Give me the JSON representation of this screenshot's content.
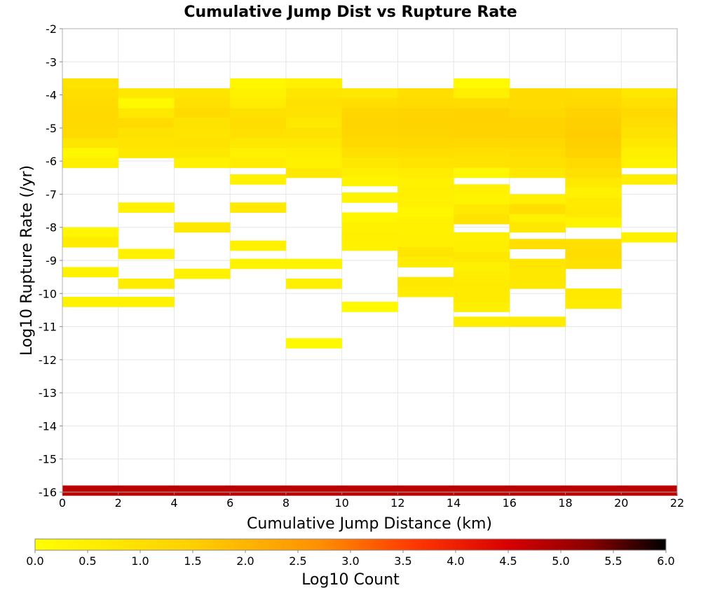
{
  "chart_data": {
    "type": "heatmap",
    "title": "Cumulative Jump Dist vs Rupture Rate",
    "xlabel": "Cumulative Jump Distance (km)",
    "ylabel": "Log10 Rupture Rate (/yr)",
    "xlim": [
      0,
      22
    ],
    "ylim": [
      -16,
      -2
    ],
    "x_bin_width": 2,
    "y_bin_width": 0.3,
    "x_ticks": [
      "0",
      "2",
      "4",
      "6",
      "8",
      "10",
      "12",
      "14",
      "16",
      "18",
      "20",
      "22"
    ],
    "y_ticks": [
      "-2",
      "-3",
      "-4",
      "-5",
      "-6",
      "-7",
      "-8",
      "-9",
      "-10",
      "-11",
      "-12",
      "-13",
      "-14",
      "-15",
      "-16"
    ],
    "grid": true,
    "colorbar": {
      "label": "Log10 Count",
      "min": 0.0,
      "max": 6.0,
      "ticks": [
        "0.0",
        "0.5",
        "1.0",
        "1.5",
        "2.0",
        "2.5",
        "3.0",
        "3.5",
        "4.0",
        "4.5",
        "5.0",
        "5.5",
        "6.0"
      ],
      "stops": [
        [
          0.0,
          "#ffff00"
        ],
        [
          0.25,
          "#ffd000"
        ],
        [
          0.45,
          "#ff9000"
        ],
        [
          0.6,
          "#ff3800"
        ],
        [
          0.75,
          "#d80000"
        ],
        [
          0.88,
          "#8a0000"
        ],
        [
          1.0,
          "#000000"
        ]
      ]
    },
    "columns": [
      {
        "x0": 0,
        "cells": [
          {
            "y": -3.65,
            "v": 0.9
          },
          {
            "y": -3.95,
            "v": 1.05
          },
          {
            "y": -4.25,
            "v": 1.15
          },
          {
            "y": -4.55,
            "v": 1.2
          },
          {
            "y": -4.85,
            "v": 1.2
          },
          {
            "y": -5.15,
            "v": 1.15
          },
          {
            "y": -5.45,
            "v": 0.8
          },
          {
            "y": -5.75,
            "v": 0.25
          },
          {
            "y": -6.05,
            "v": 0.5
          },
          {
            "y": -8.15,
            "v": 0.3
          },
          {
            "y": -8.45,
            "v": 0.6
          },
          {
            "y": -9.35,
            "v": 0.4
          },
          {
            "y": -10.25,
            "v": 0.45
          },
          {
            "y": -15.95,
            "v": 4.8
          }
        ]
      },
      {
        "x0": 2,
        "cells": [
          {
            "y": -3.95,
            "v": 0.75
          },
          {
            "y": -4.25,
            "v": 0.2
          },
          {
            "y": -4.55,
            "v": 0.75
          },
          {
            "y": -4.85,
            "v": 1.15
          },
          {
            "y": -5.15,
            "v": 0.9
          },
          {
            "y": -5.45,
            "v": 0.85
          },
          {
            "y": -5.75,
            "v": 0.75
          },
          {
            "y": -7.4,
            "v": 0.45
          },
          {
            "y": -8.8,
            "v": 0.45
          },
          {
            "y": -9.7,
            "v": 0.6
          },
          {
            "y": -10.25,
            "v": 0.45
          },
          {
            "y": -15.95,
            "v": 4.8
          }
        ]
      },
      {
        "x0": 4,
        "cells": [
          {
            "y": -3.95,
            "v": 0.85
          },
          {
            "y": -4.25,
            "v": 1.0
          },
          {
            "y": -4.55,
            "v": 1.15
          },
          {
            "y": -4.85,
            "v": 0.9
          },
          {
            "y": -5.15,
            "v": 0.85
          },
          {
            "y": -5.45,
            "v": 0.9
          },
          {
            "y": -5.75,
            "v": 0.75
          },
          {
            "y": -6.05,
            "v": 0.45
          },
          {
            "y": -8.0,
            "v": 0.75
          },
          {
            "y": -9.4,
            "v": 0.45
          },
          {
            "y": -15.95,
            "v": 4.8
          }
        ]
      },
      {
        "x0": 6,
        "cells": [
          {
            "y": -3.65,
            "v": 0.25
          },
          {
            "y": -3.95,
            "v": 0.4
          },
          {
            "y": -4.25,
            "v": 0.6
          },
          {
            "y": -4.55,
            "v": 0.95
          },
          {
            "y": -4.85,
            "v": 1.1
          },
          {
            "y": -5.15,
            "v": 1.0
          },
          {
            "y": -5.45,
            "v": 0.75
          },
          {
            "y": -5.75,
            "v": 0.45
          },
          {
            "y": -6.05,
            "v": 0.6
          },
          {
            "y": -6.55,
            "v": 0.45
          },
          {
            "y": -7.4,
            "v": 0.7
          },
          {
            "y": -8.55,
            "v": 0.45
          },
          {
            "y": -9.1,
            "v": 0.35
          },
          {
            "y": -15.95,
            "v": 4.8
          }
        ]
      },
      {
        "x0": 8,
        "cells": [
          {
            "y": -3.65,
            "v": 0.45
          },
          {
            "y": -3.95,
            "v": 0.8
          },
          {
            "y": -4.25,
            "v": 0.95
          },
          {
            "y": -4.55,
            "v": 0.9
          },
          {
            "y": -4.85,
            "v": 0.75
          },
          {
            "y": -5.15,
            "v": 0.9
          },
          {
            "y": -5.45,
            "v": 0.75
          },
          {
            "y": -5.75,
            "v": 0.55
          },
          {
            "y": -6.05,
            "v": 0.45
          },
          {
            "y": -6.35,
            "v": 0.7
          },
          {
            "y": -9.1,
            "v": 0.35
          },
          {
            "y": -9.7,
            "v": 0.5
          },
          {
            "y": -11.5,
            "v": 0.2
          },
          {
            "y": -15.95,
            "v": 4.8
          }
        ]
      },
      {
        "x0": 10,
        "cells": [
          {
            "y": -3.95,
            "v": 0.75
          },
          {
            "y": -4.25,
            "v": 1.05
          },
          {
            "y": -4.55,
            "v": 1.3
          },
          {
            "y": -4.85,
            "v": 1.35
          },
          {
            "y": -5.15,
            "v": 1.3
          },
          {
            "y": -5.45,
            "v": 1.2
          },
          {
            "y": -5.75,
            "v": 1.0
          },
          {
            "y": -6.05,
            "v": 0.75
          },
          {
            "y": -6.35,
            "v": 0.55
          },
          {
            "y": -6.6,
            "v": 0.35
          },
          {
            "y": -7.1,
            "v": 0.35
          },
          {
            "y": -7.7,
            "v": 0.3
          },
          {
            "y": -8.0,
            "v": 0.45
          },
          {
            "y": -8.3,
            "v": 0.5
          },
          {
            "y": -8.55,
            "v": 0.45
          },
          {
            "y": -10.4,
            "v": 0.15
          },
          {
            "y": -15.95,
            "v": 4.8
          }
        ]
      },
      {
        "x0": 12,
        "cells": [
          {
            "y": -3.95,
            "v": 1.05
          },
          {
            "y": -4.25,
            "v": 1.15
          },
          {
            "y": -4.55,
            "v": 1.35
          },
          {
            "y": -4.85,
            "v": 1.4
          },
          {
            "y": -5.15,
            "v": 1.35
          },
          {
            "y": -5.45,
            "v": 1.25
          },
          {
            "y": -5.75,
            "v": 1.05
          },
          {
            "y": -6.05,
            "v": 0.85
          },
          {
            "y": -6.35,
            "v": 0.6
          },
          {
            "y": -6.65,
            "v": 0.45
          },
          {
            "y": -6.95,
            "v": 0.5
          },
          {
            "y": -7.25,
            "v": 0.45
          },
          {
            "y": -7.55,
            "v": 0.3
          },
          {
            "y": -7.85,
            "v": 0.45
          },
          {
            "y": -8.15,
            "v": 0.45
          },
          {
            "y": -8.45,
            "v": 0.5
          },
          {
            "y": -8.75,
            "v": 0.8
          },
          {
            "y": -9.05,
            "v": 0.6
          },
          {
            "y": -9.65,
            "v": 0.75
          },
          {
            "y": -9.95,
            "v": 0.6
          },
          {
            "y": -15.95,
            "v": 4.8
          }
        ]
      },
      {
        "x0": 14,
        "cells": [
          {
            "y": -3.65,
            "v": 0.15
          },
          {
            "y": -3.95,
            "v": 0.5
          },
          {
            "y": -4.25,
            "v": 1.1
          },
          {
            "y": -4.55,
            "v": 1.4
          },
          {
            "y": -4.85,
            "v": 1.45
          },
          {
            "y": -5.15,
            "v": 1.4
          },
          {
            "y": -5.45,
            "v": 1.2
          },
          {
            "y": -5.75,
            "v": 1.0
          },
          {
            "y": -6.05,
            "v": 0.9
          },
          {
            "y": -6.35,
            "v": 0.25
          },
          {
            "y": -6.85,
            "v": 0.45
          },
          {
            "y": -7.15,
            "v": 0.35
          },
          {
            "y": -7.45,
            "v": 0.7
          },
          {
            "y": -7.75,
            "v": 0.9
          },
          {
            "y": -8.3,
            "v": 0.5
          },
          {
            "y": -8.6,
            "v": 0.55
          },
          {
            "y": -8.9,
            "v": 0.75
          },
          {
            "y": -9.2,
            "v": 0.5
          },
          {
            "y": -9.5,
            "v": 0.6
          },
          {
            "y": -9.8,
            "v": 0.65
          },
          {
            "y": -10.1,
            "v": 0.65
          },
          {
            "y": -10.4,
            "v": 0.5
          },
          {
            "y": -10.85,
            "v": 0.55
          },
          {
            "y": -15.95,
            "v": 4.8
          }
        ]
      },
      {
        "x0": 16,
        "cells": [
          {
            "y": -3.95,
            "v": 1.15
          },
          {
            "y": -4.25,
            "v": 1.15
          },
          {
            "y": -4.55,
            "v": 1.25
          },
          {
            "y": -4.85,
            "v": 1.4
          },
          {
            "y": -5.15,
            "v": 1.4
          },
          {
            "y": -5.45,
            "v": 1.25
          },
          {
            "y": -5.75,
            "v": 1.1
          },
          {
            "y": -6.05,
            "v": 0.95
          },
          {
            "y": -6.35,
            "v": 0.75
          },
          {
            "y": -7.15,
            "v": 0.5
          },
          {
            "y": -7.45,
            "v": 1.05
          },
          {
            "y": -7.75,
            "v": 0.45
          },
          {
            "y": -8.0,
            "v": 0.75
          },
          {
            "y": -8.5,
            "v": 1.05
          },
          {
            "y": -9.1,
            "v": 0.8
          },
          {
            "y": -9.4,
            "v": 0.75
          },
          {
            "y": -9.7,
            "v": 0.75
          },
          {
            "y": -10.85,
            "v": 0.6
          },
          {
            "y": -15.95,
            "v": 4.8
          }
        ]
      },
      {
        "x0": 18,
        "cells": [
          {
            "y": -3.95,
            "v": 1.1
          },
          {
            "y": -4.25,
            "v": 1.2
          },
          {
            "y": -4.55,
            "v": 1.4
          },
          {
            "y": -4.85,
            "v": 1.5
          },
          {
            "y": -5.15,
            "v": 1.55
          },
          {
            "y": -5.45,
            "v": 1.5
          },
          {
            "y": -5.75,
            "v": 1.4
          },
          {
            "y": -6.05,
            "v": 1.15
          },
          {
            "y": -6.35,
            "v": 1.0
          },
          {
            "y": -6.65,
            "v": 0.7
          },
          {
            "y": -6.95,
            "v": 0.45
          },
          {
            "y": -7.25,
            "v": 0.65
          },
          {
            "y": -7.55,
            "v": 0.7
          },
          {
            "y": -7.85,
            "v": 0.35
          },
          {
            "y": -8.5,
            "v": 1.0
          },
          {
            "y": -8.8,
            "v": 1.1
          },
          {
            "y": -9.1,
            "v": 0.95
          },
          {
            "y": -10.0,
            "v": 0.7
          },
          {
            "y": -10.3,
            "v": 0.6
          },
          {
            "y": -15.95,
            "v": 4.8
          }
        ]
      },
      {
        "x0": 20,
        "cells": [
          {
            "y": -3.95,
            "v": 0.75
          },
          {
            "y": -4.25,
            "v": 1.0
          },
          {
            "y": -4.55,
            "v": 1.2
          },
          {
            "y": -4.85,
            "v": 1.1
          },
          {
            "y": -5.15,
            "v": 0.9
          },
          {
            "y": -5.45,
            "v": 0.75
          },
          {
            "y": -5.75,
            "v": 0.5
          },
          {
            "y": -6.05,
            "v": 0.35
          },
          {
            "y": -6.55,
            "v": 0.55
          },
          {
            "y": -8.3,
            "v": 0.45
          },
          {
            "y": -15.95,
            "v": 4.8
          }
        ]
      }
    ]
  }
}
